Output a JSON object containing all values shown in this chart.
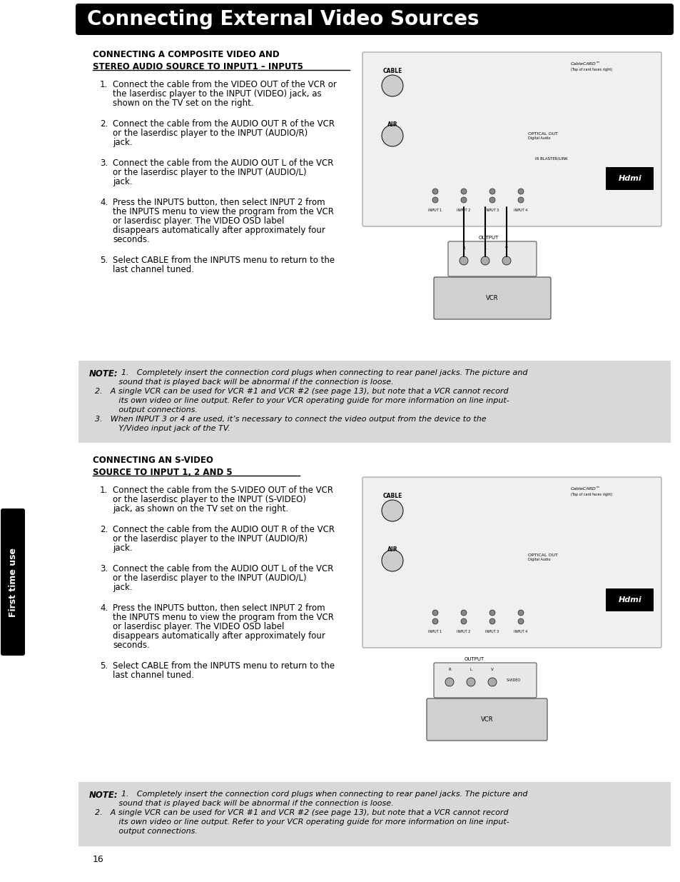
{
  "title": "Connecting External Video Sources",
  "title_bg": "#000000",
  "title_color": "#ffffff",
  "title_fontsize": 20,
  "sidebar_text": "First time use",
  "sidebar_bg": "#000000",
  "sidebar_color": "#ffffff",
  "section1_heading": "CONNECTING A COMPOSITE VIDEO AND\nSTEREO AUDIO SOURCE TO INPUT1 – INPUT5",
  "section1_steps": [
    "Connect the cable from the VIDEO OUT of the VCR or the laserdisc player to the INPUT (VIDEO) jack, as shown on the TV set on the right.",
    "Connect the cable from the AUDIO OUT R of the VCR or the laserdisc player to the INPUT (AUDIO/R) jack.",
    "Connect the cable from the AUDIO OUT L of the VCR or the laserdisc player to the INPUT (AUDIO/L) jack.",
    "Press the <b>INPUTS</b> button, then select <b>INPUT 2</b> from the <b>INPUTS</b> menu to view the program from the VCR or laserdisc player. The VIDEO OSD label disappears automatically after approximately four seconds.",
    "Select <b>CABLE</b> from the <b>INPUTS</b> menu to return to the last channel tuned."
  ],
  "note1_lines": [
    "1. Completely insert the connection cord plugs when connecting to rear panel jacks. The picture and",
    "   sound that is played back will be abnormal if the connection is loose.",
    "2. A single VCR can be used for VCR #1 and VCR #2 (see page 13), but note that a VCR cannot record",
    "   its own video or line output. Refer to your VCR operating guide for more information on line input-",
    "   output connections.",
    "3. When INPUT 3 or 4 are used, it’s necessary to connect the video output from the device to the",
    "   Y/Video input jack of the TV."
  ],
  "section2_heading": "CONNECTING AN S-VIDEO\nSOURCE TO INPUT 1, 2 AND 5",
  "section2_steps": [
    "Connect the cable from the S-VIDEO OUT of the VCR or the laserdisc player to the INPUT (S-VIDEO) jack, as shown on the TV set on the right.",
    "Connect the cable from the AUDIO OUT R of the VCR or the laserdisc player to the INPUT (AUDIO/R) jack.",
    "Connect the cable from the AUDIO OUT L of the VCR or the laserdisc player to the INPUT (AUDIO/L) jack.",
    "Press the <b>INPUTS</b> button, then select <b>INPUT 2</b> from the <b>INPUTS</b> menu to view the program from the VCR or laserdisc player. The VIDEO OSD label disappears automatically after approximately four seconds.",
    "Select <b>CABLE</b> from the <b>INPUTS</b> menu to return to the last channel tuned."
  ],
  "note2_lines": [
    "1. Completely insert the connection cord plugs when connecting to rear panel jacks. The picture and",
    "   sound that is played back will be abnormal if the connection is loose.",
    "2. A single VCR can be used for VCR #1 and VCR #2 (see page 13), but note that a VCR cannot record",
    "   its own video or line output. Refer to your VCR operating guide for more information on line input-",
    "   output connections."
  ],
  "page_number": "16",
  "bg_color": "#ffffff",
  "note_bg": "#d8d8d8",
  "body_fontsize": 8.5,
  "note_fontsize": 8.0
}
